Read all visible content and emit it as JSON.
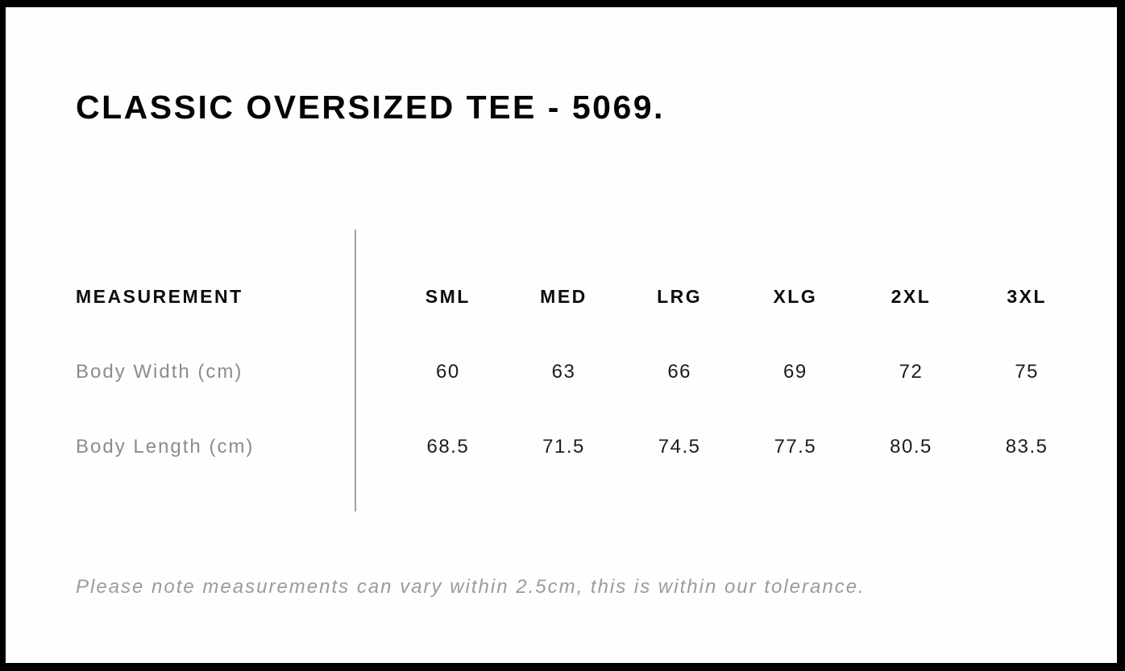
{
  "page": {
    "title": "CLASSIC OVERSIZED TEE - 5069.",
    "tolerance_note": "Please note measurements can vary within 2.5cm, this is within our tolerance."
  },
  "size_chart": {
    "measurement_header": "MEASUREMENT",
    "size_headers": [
      "SML",
      "MED",
      "LRG",
      "XLG",
      "2XL",
      "3XL"
    ],
    "rows": [
      {
        "label": "Body Width (cm)",
        "values": [
          "60",
          "63",
          "66",
          "69",
          "72",
          "75"
        ]
      },
      {
        "label": "Body Length (cm)",
        "values": [
          "68.5",
          "71.5",
          "74.5",
          "77.5",
          "80.5",
          "83.5"
        ]
      }
    ]
  },
  "colors": {
    "frame_border": "#000000",
    "background": "#fefefe",
    "heading_text": "#050505",
    "header_text": "#0d0d0d",
    "label_text": "#8c8c8c",
    "value_text": "#1c1c1c",
    "note_text": "#9b9b9b",
    "divider": "#a3a3a3"
  }
}
